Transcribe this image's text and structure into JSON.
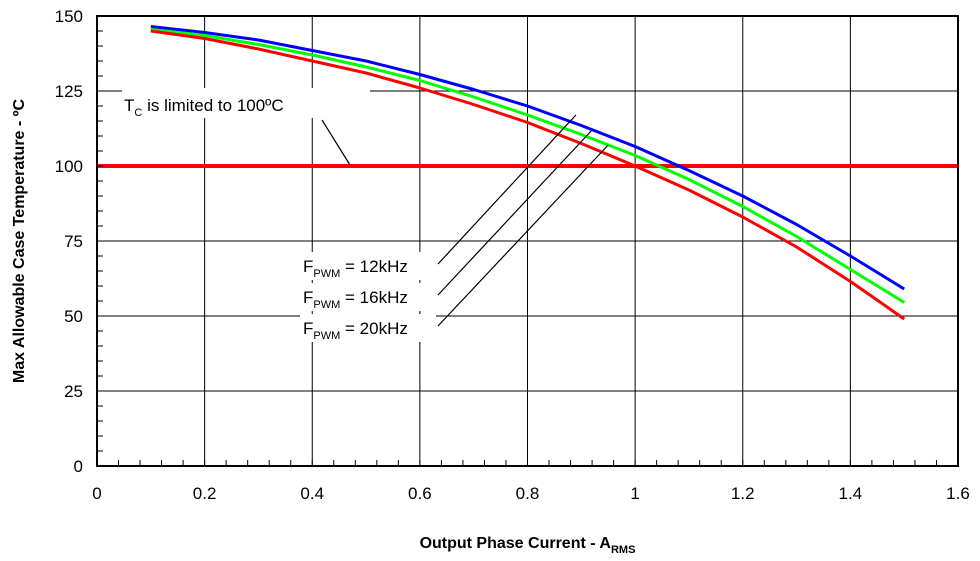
{
  "chart_data": {
    "type": "line",
    "xlabel_main": "Output Phase Current - A",
    "xlabel_sub": "RMS",
    "ylabel": "Max Allowable Case Temperature - ºC",
    "xlim": [
      0,
      1.6
    ],
    "ylim": [
      0,
      150
    ],
    "x_ticks": [
      "0",
      "0.2",
      "0.4",
      "0.6",
      "0.8",
      "1",
      "1.2",
      "1.4",
      "1.6"
    ],
    "y_ticks": [
      "0",
      "25",
      "50",
      "75",
      "100",
      "125",
      "150"
    ],
    "grid": true,
    "series": [
      {
        "color": "#0000ff",
        "x": [
          0.1,
          0.2,
          0.3,
          0.4,
          0.5,
          0.6,
          0.7,
          0.8,
          0.9,
          1.0,
          1.1,
          1.2,
          1.3,
          1.4,
          1.5
        ],
        "y": [
          146.5,
          144.5,
          142,
          138.5,
          135,
          130.5,
          125.5,
          120,
          113.5,
          106.5,
          98.5,
          90,
          80.5,
          70,
          59
        ]
      },
      {
        "color": "#00ff00",
        "x": [
          0.1,
          0.2,
          0.3,
          0.4,
          0.5,
          0.6,
          0.7,
          0.8,
          0.9,
          1.0,
          1.1,
          1.2,
          1.3,
          1.4,
          1.5
        ],
        "y": [
          145.5,
          143.5,
          140.5,
          137,
          133,
          128.5,
          123,
          117,
          110.5,
          103.5,
          95.5,
          86.5,
          76.5,
          65.5,
          54.5
        ]
      },
      {
        "color": "#ff0000",
        "x": [
          0.1,
          0.2,
          0.3,
          0.4,
          0.5,
          0.6,
          0.7,
          0.8,
          0.9,
          1.0,
          1.1,
          1.2,
          1.3,
          1.4,
          1.5
        ],
        "y": [
          145,
          142.5,
          139,
          135,
          131,
          126,
          120.5,
          114.5,
          107.5,
          100,
          92,
          83,
          73,
          61.5,
          49
        ]
      }
    ],
    "limit_line": {
      "value": 100,
      "color": "#ff0000"
    },
    "annotations": {
      "limit": {
        "pre": "T",
        "sub": "C",
        "post": " is limited to 100ºC"
      },
      "freq": [
        {
          "pre": "F",
          "sub": "PWM",
          "post": " = 12kHz",
          "target": [
            0.89,
            117
          ]
        },
        {
          "pre": "F",
          "sub": "PWM",
          "post": " = 16kHz",
          "target": [
            0.92,
            112
          ]
        },
        {
          "pre": "F",
          "sub": "PWM",
          "post": " = 20kHz",
          "target": [
            0.95,
            107
          ]
        }
      ]
    }
  }
}
